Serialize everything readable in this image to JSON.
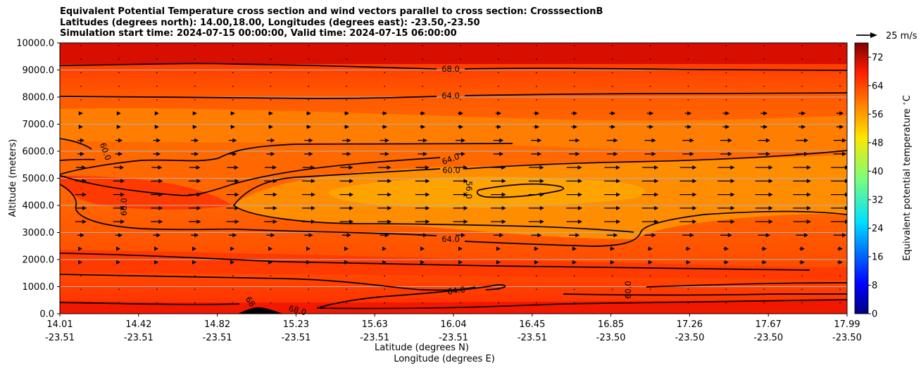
{
  "chart_data": {
    "type": "heatmap",
    "title_lines": [
      "Equivalent Potential Temperature cross section and wind vectors parallel to cross section: CrosssectionB",
      "Latitudes (degrees north): 14.00,18.00, Longitudes (degrees east): -23.50,-23.50",
      "Simulation start time: 2024-07-15 00:00:00, Valid time: 2024-07-15 06:00:00"
    ],
    "xlabel": "Latitude (degrees N)",
    "xlabel2": "Longitude (degrees E)",
    "ylabel": "Altitude (meters)",
    "ylim": [
      0,
      10000
    ],
    "y_ticks": [
      "0.0",
      "1000.0",
      "2000.0",
      "3000.0",
      "4000.0",
      "5000.0",
      "6000.0",
      "7000.0",
      "8000.0",
      "9000.0",
      "10000.0"
    ],
    "x_ticks": [
      {
        "lat": "14.01",
        "lon": "-23.51"
      },
      {
        "lat": "14.42",
        "lon": "-23.51"
      },
      {
        "lat": "14.82",
        "lon": "-23.51"
      },
      {
        "lat": "15.23",
        "lon": "-23.51"
      },
      {
        "lat": "15.63",
        "lon": "-23.51"
      },
      {
        "lat": "16.04",
        "lon": "-23.51"
      },
      {
        "lat": "16.45",
        "lon": "-23.51"
      },
      {
        "lat": "16.85",
        "lon": "-23.50"
      },
      {
        "lat": "17.26",
        "lon": "-23.50"
      },
      {
        "lat": "17.67",
        "lon": "-23.50"
      },
      {
        "lat": "17.99",
        "lon": "-23.50"
      }
    ],
    "colorbar": {
      "label": "Equivalent potential temperature $^\\circ$C",
      "ticks": [
        0,
        8,
        16,
        24,
        32,
        40,
        48,
        56,
        64,
        72
      ],
      "range": [
        0,
        76
      ],
      "colormap": "jet"
    },
    "quiver_key": "25 m/s",
    "contour_labels": [
      "68.0",
      "64.0",
      "64.0",
      "60.0",
      "56.0",
      "64.0",
      "64.0",
      "60.0",
      "60.0",
      "60.0",
      "68",
      "68.0"
    ],
    "grid": "horizontal"
  }
}
